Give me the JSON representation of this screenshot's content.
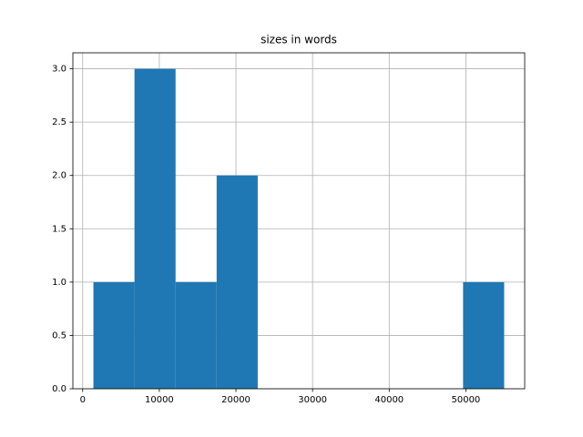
{
  "chart_data": {
    "type": "histogram",
    "title": "sizes in words",
    "bins": [
      1400,
      6760,
      12120,
      17480,
      22840,
      28200,
      33560,
      38920,
      44280,
      49640,
      55000
    ],
    "values": [
      1,
      3,
      1,
      2,
      0,
      0,
      0,
      0,
      0,
      1
    ],
    "color": "#1f77b4",
    "xlim": [
      -1280,
      57680
    ],
    "xticks": [
      0,
      10000,
      20000,
      30000,
      40000,
      50000
    ],
    "ylim": [
      0,
      3.15
    ],
    "yticks": [
      {
        "value": 0,
        "label": "0.0"
      },
      {
        "value": 0.5,
        "label": "0.5"
      },
      {
        "value": 1,
        "label": "1.0"
      },
      {
        "value": 1.5,
        "label": "1.5"
      },
      {
        "value": 2,
        "label": "2.0"
      },
      {
        "value": 2.5,
        "label": "2.5"
      },
      {
        "value": 3,
        "label": "3.0"
      }
    ],
    "grid": true
  }
}
